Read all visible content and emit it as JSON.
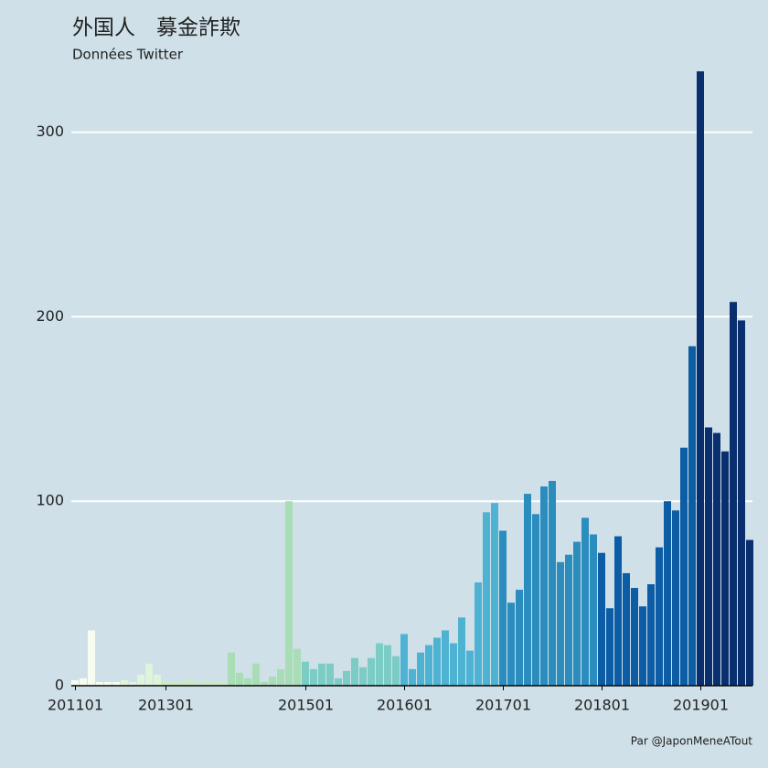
{
  "chart_data": {
    "type": "bar",
    "title": "外国人　募金詐欺",
    "subtitle": "Données Twitter",
    "caption": "Par @JaponMeneATout",
    "categories": [
      "201101",
      null,
      null,
      null,
      null,
      null,
      null,
      null,
      null,
      null,
      null,
      "201301",
      null,
      null,
      null,
      null,
      null,
      null,
      null,
      null,
      null,
      null,
      null,
      null,
      null,
      null,
      null,
      null,
      "201501",
      null,
      null,
      null,
      null,
      null,
      null,
      null,
      null,
      null,
      null,
      null,
      "201601",
      null,
      null,
      null,
      null,
      null,
      null,
      null,
      null,
      null,
      null,
      null,
      "201701",
      null,
      null,
      null,
      null,
      null,
      null,
      null,
      null,
      null,
      null,
      null,
      "201801",
      null,
      null,
      null,
      null,
      null,
      null,
      null,
      null,
      null,
      null,
      null,
      "201901",
      null,
      null,
      null,
      null,
      null,
      null
    ],
    "values": [
      3,
      4,
      30,
      2,
      2,
      2,
      3,
      2,
      6,
      12,
      6,
      2,
      2,
      2,
      3,
      2,
      3,
      2,
      2,
      18,
      7,
      4,
      12,
      2,
      5,
      9,
      100,
      20,
      13,
      9,
      12,
      12,
      4,
      8,
      15,
      10,
      15,
      23,
      22,
      16,
      28,
      9,
      18,
      22,
      26,
      30,
      23,
      37,
      19,
      56,
      94,
      99,
      84,
      45,
      52,
      104,
      93,
      108,
      111,
      67,
      71,
      78,
      91,
      82,
      72,
      42,
      81,
      61,
      53,
      43,
      55,
      75,
      100,
      95,
      129,
      184,
      333,
      140,
      137,
      127,
      208,
      198,
      79
    ],
    "colors": [
      "#f7fcf0",
      "#f7fcf0",
      "#f7fcf0",
      "#f7fcf0",
      "#f7fcf0",
      "#f7fcf0",
      "#e0f3db",
      "#e0f3db",
      "#e0f3db",
      "#e0f3db",
      "#e0f3db",
      "#ccebc5",
      "#ccebc5",
      "#ccebc5",
      "#ccebc5",
      "#ccebc5",
      "#ccebc5",
      "#ccebc5",
      "#ccebc5",
      "#a8ddb5",
      "#a8ddb5",
      "#a8ddb5",
      "#a8ddb5",
      "#a8ddb5",
      "#a8ddb5",
      "#a8ddb5",
      "#a8ddb5",
      "#a8ddb5",
      "#7bccc4",
      "#7bccc4",
      "#7bccc4",
      "#7bccc4",
      "#7bccc4",
      "#7bccc4",
      "#7bccc4",
      "#7bccc4",
      "#7bccc4",
      "#7bccc4",
      "#7bccc4",
      "#7bccc4",
      "#4eb3d3",
      "#4eb3d3",
      "#4eb3d3",
      "#4eb3d3",
      "#4eb3d3",
      "#4eb3d3",
      "#4eb3d3",
      "#4eb3d3",
      "#4eb3d3",
      "#4eb3d3",
      "#4eb3d3",
      "#4eb3d3",
      "#2b8cbe",
      "#2b8cbe",
      "#2b8cbe",
      "#2b8cbe",
      "#2b8cbe",
      "#2b8cbe",
      "#2b8cbe",
      "#2b8cbe",
      "#2b8cbe",
      "#2b8cbe",
      "#2b8cbe",
      "#2b8cbe",
      "#0c5da5",
      "#0c5da5",
      "#0c5da5",
      "#0c5da5",
      "#0c5da5",
      "#0c5da5",
      "#0c5da5",
      "#0c5da5",
      "#0c5da5",
      "#0c5da5",
      "#0c5da5",
      "#0c5da5",
      "#0a2f6e",
      "#0a2f6e",
      "#0a2f6e",
      "#0a2f6e",
      "#0a2f6e",
      "#0a2f6e",
      "#0a2f6e"
    ],
    "ylim": [
      0,
      334
    ],
    "yticks": [
      0,
      100,
      200,
      300
    ],
    "grid": true
  }
}
